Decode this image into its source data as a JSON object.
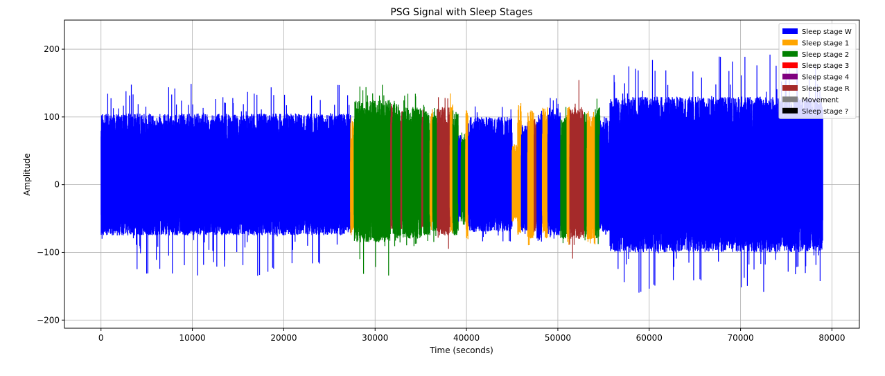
{
  "chart_data": {
    "type": "line",
    "title": "PSG Signal with Sleep Stages",
    "xlabel": "Time (seconds)",
    "ylabel": "Amplitude",
    "xlim": [
      -4000,
      83000
    ],
    "ylim": [
      -212,
      243
    ],
    "xticks": [
      0,
      10000,
      20000,
      30000,
      40000,
      50000,
      60000,
      70000,
      80000
    ],
    "xtick_labels": [
      "0",
      "10000",
      "20000",
      "30000",
      "40000",
      "50000",
      "60000",
      "70000",
      "80000"
    ],
    "yticks": [
      -200,
      -100,
      0,
      100,
      200
    ],
    "ytick_labels": [
      "−200",
      "−100",
      "0",
      "100",
      "200"
    ],
    "grid": true,
    "legend_position": "top-right",
    "legend": [
      {
        "label": "Sleep stage W",
        "color": "#0000ff"
      },
      {
        "label": "Sleep stage 1",
        "color": "#ffa500"
      },
      {
        "label": "Sleep stage 2",
        "color": "#008000"
      },
      {
        "label": "Sleep stage 3",
        "color": "#ff0000"
      },
      {
        "label": "Sleep stage 4",
        "color": "#800080"
      },
      {
        "label": "Sleep stage R",
        "color": "#a52a2a"
      },
      {
        "label": "Movement",
        "color": "#808080"
      },
      {
        "label": "Sleep stage ?",
        "color": "#000000"
      }
    ],
    "segments": [
      {
        "stage": "Sleep stage W",
        "start": 0,
        "end": 27300,
        "hi": 105,
        "lo": -75,
        "peak_hi": 150,
        "peak_lo": -135
      },
      {
        "stage": "Sleep stage 1",
        "start": 27300,
        "end": 27700,
        "hi": 95,
        "lo": -75,
        "peak_hi": 100,
        "peak_lo": -80
      },
      {
        "stage": "Sleep stage 2",
        "start": 27700,
        "end": 31700,
        "hi": 125,
        "lo": -85,
        "peak_hi": 148,
        "peak_lo": -135
      },
      {
        "stage": "Sleep stage R",
        "start": 31700,
        "end": 31900,
        "hi": 120,
        "lo": -70,
        "peak_hi": 125,
        "peak_lo": -75
      },
      {
        "stage": "Sleep stage 2",
        "start": 31900,
        "end": 32800,
        "hi": 120,
        "lo": -80,
        "peak_hi": 140,
        "peak_lo": -95
      },
      {
        "stage": "Sleep stage R",
        "start": 32800,
        "end": 33000,
        "hi": 120,
        "lo": -70,
        "peak_hi": 125,
        "peak_lo": -75
      },
      {
        "stage": "Sleep stage 2",
        "start": 33000,
        "end": 35100,
        "hi": 115,
        "lo": -80,
        "peak_hi": 140,
        "peak_lo": -100
      },
      {
        "stage": "Sleep stage R",
        "start": 35100,
        "end": 35300,
        "hi": 115,
        "lo": -70,
        "peak_hi": 120,
        "peak_lo": -75
      },
      {
        "stage": "Sleep stage 2",
        "start": 35300,
        "end": 36000,
        "hi": 110,
        "lo": -75,
        "peak_hi": 125,
        "peak_lo": -95
      },
      {
        "stage": "Sleep stage 1",
        "start": 36000,
        "end": 36300,
        "hi": 110,
        "lo": -70,
        "peak_hi": 125,
        "peak_lo": -80
      },
      {
        "stage": "Sleep stage 2",
        "start": 36300,
        "end": 36800,
        "hi": 110,
        "lo": -70,
        "peak_hi": 120,
        "peak_lo": -90
      },
      {
        "stage": "Sleep stage R",
        "start": 36800,
        "end": 38200,
        "hi": 115,
        "lo": -75,
        "peak_hi": 135,
        "peak_lo": -95
      },
      {
        "stage": "Sleep stage 1",
        "start": 38200,
        "end": 38500,
        "hi": 120,
        "lo": -70,
        "peak_hi": 135,
        "peak_lo": -80
      },
      {
        "stage": "Sleep stage 2",
        "start": 38500,
        "end": 39100,
        "hi": 110,
        "lo": -75,
        "peak_hi": 125,
        "peak_lo": -110
      },
      {
        "stage": "Sleep stage W",
        "start": 39100,
        "end": 39400,
        "hi": 75,
        "lo": -50,
        "peak_hi": 80,
        "peak_lo": -55
      },
      {
        "stage": "Sleep stage 2",
        "start": 39400,
        "end": 39900,
        "hi": 70,
        "lo": -55,
        "peak_hi": 78,
        "peak_lo": -60
      },
      {
        "stage": "Sleep stage 1",
        "start": 39900,
        "end": 40200,
        "hi": 110,
        "lo": -80,
        "peak_hi": 125,
        "peak_lo": -100
      },
      {
        "stage": "Sleep stage W",
        "start": 40200,
        "end": 45000,
        "hi": 100,
        "lo": -70,
        "peak_hi": 125,
        "peak_lo": -90
      },
      {
        "stage": "Sleep stage 1",
        "start": 45000,
        "end": 45600,
        "hi": 60,
        "lo": -55,
        "peak_hi": 70,
        "peak_lo": -60
      },
      {
        "stage": "Sleep stage 1",
        "start": 45600,
        "end": 46000,
        "hi": 120,
        "lo": -75,
        "peak_hi": 150,
        "peak_lo": -90
      },
      {
        "stage": "Sleep stage W",
        "start": 46000,
        "end": 46700,
        "hi": 90,
        "lo": -70,
        "peak_hi": 100,
        "peak_lo": -80
      },
      {
        "stage": "Sleep stage 1",
        "start": 46700,
        "end": 47400,
        "hi": 110,
        "lo": -80,
        "peak_hi": 130,
        "peak_lo": -90
      },
      {
        "stage": "Sleep stage R",
        "start": 47400,
        "end": 47700,
        "hi": 100,
        "lo": -70,
        "peak_hi": 110,
        "peak_lo": -90
      },
      {
        "stage": "Sleep stage W",
        "start": 47700,
        "end": 48300,
        "hi": 110,
        "lo": -80,
        "peak_hi": 125,
        "peak_lo": -85
      },
      {
        "stage": "Sleep stage 1",
        "start": 48300,
        "end": 48900,
        "hi": 115,
        "lo": -80,
        "peak_hi": 125,
        "peak_lo": -85
      },
      {
        "stage": "Sleep stage W",
        "start": 48900,
        "end": 50300,
        "hi": 115,
        "lo": -75,
        "peak_hi": 130,
        "peak_lo": -80
      },
      {
        "stage": "Sleep stage 2",
        "start": 50300,
        "end": 51000,
        "hi": 100,
        "lo": -80,
        "peak_hi": 120,
        "peak_lo": -95
      },
      {
        "stage": "Sleep stage 1",
        "start": 51000,
        "end": 51300,
        "hi": 115,
        "lo": -90,
        "peak_hi": 128,
        "peak_lo": -108
      },
      {
        "stage": "Sleep stage R",
        "start": 51300,
        "end": 52900,
        "hi": 115,
        "lo": -80,
        "peak_hi": 155,
        "peak_lo": -110
      },
      {
        "stage": "Sleep stage 2",
        "start": 52900,
        "end": 53200,
        "hi": 105,
        "lo": -75,
        "peak_hi": 115,
        "peak_lo": -85
      },
      {
        "stage": "Sleep stage 1",
        "start": 53200,
        "end": 54100,
        "hi": 110,
        "lo": -85,
        "peak_hi": 120,
        "peak_lo": -90
      },
      {
        "stage": "Sleep stage 2",
        "start": 54100,
        "end": 54600,
        "hi": 115,
        "lo": -80,
        "peak_hi": 140,
        "peak_lo": -90
      },
      {
        "stage": "Sleep stage W",
        "start": 54600,
        "end": 55700,
        "hi": 95,
        "lo": -70,
        "peak_hi": 105,
        "peak_lo": -75
      },
      {
        "stage": "Sleep stage W",
        "start": 55700,
        "end": 79000,
        "hi": 130,
        "lo": -100,
        "peak_hi": 193,
        "peak_lo": -160
      }
    ]
  }
}
